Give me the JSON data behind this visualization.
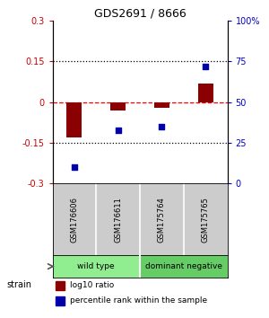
{
  "title": "GDS2691 / 8666",
  "samples": [
    "GSM176606",
    "GSM176611",
    "GSM175764",
    "GSM175765"
  ],
  "log10_ratio": [
    -0.13,
    -0.03,
    -0.02,
    0.07
  ],
  "percentile_rank": [
    10,
    33,
    35,
    72
  ],
  "ylim_left": [
    -0.3,
    0.3
  ],
  "ylim_right": [
    0,
    100
  ],
  "yticks_left": [
    -0.3,
    -0.15,
    0,
    0.15,
    0.3
  ],
  "yticks_right": [
    0,
    25,
    50,
    75,
    100
  ],
  "ytick_labels_left": [
    "-0.3",
    "-0.15",
    "0",
    "0.15",
    "0.3"
  ],
  "ytick_labels_right": [
    "0",
    "25",
    "50",
    "75",
    "100%"
  ],
  "hline_dotted": [
    -0.15,
    0.15
  ],
  "hline_red_dashed": 0,
  "bar_color": "#8B0000",
  "dot_color": "#0000AA",
  "strain_label": "strain",
  "legend_red_label": "log10 ratio",
  "legend_blue_label": "percentile rank within the sample",
  "bg_color": "#ffffff",
  "plot_bg": "#ffffff",
  "label_color_left": "#cc0000",
  "label_color_right": "#0000cc",
  "bar_width": 0.35,
  "label_bg": "#cccccc",
  "wt_color": "#90EE90",
  "dn_color": "#66CC66",
  "separator_color": "#888888"
}
